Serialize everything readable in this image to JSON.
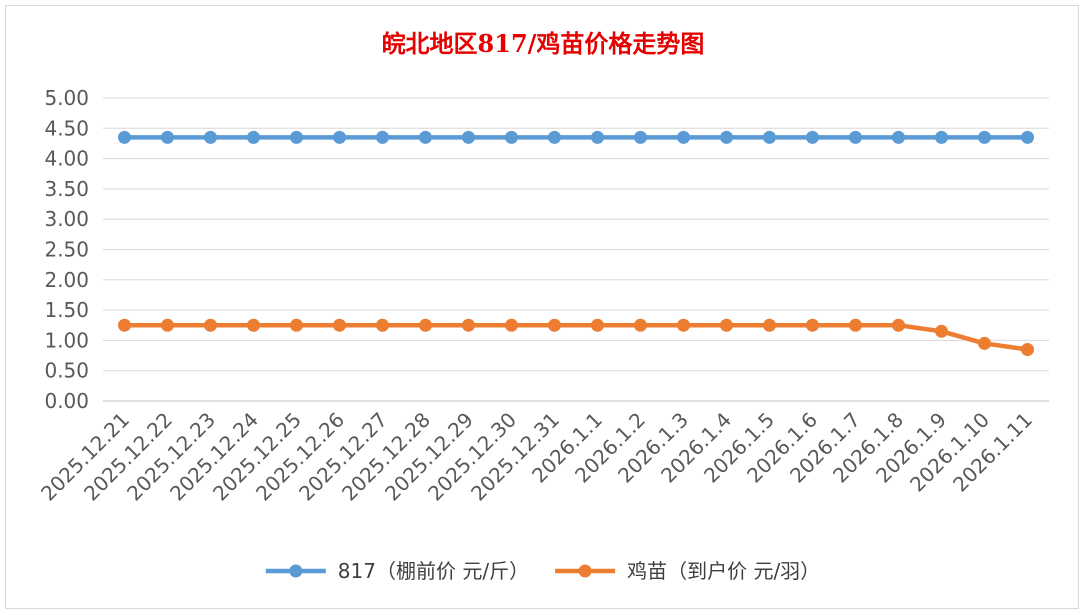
{
  "chart_data": {
    "type": "line",
    "title": "皖北地区817/鸡苗价格走势图",
    "title_color": "#e60000",
    "xlabel": "",
    "ylabel": "",
    "ylim": [
      0,
      5
    ],
    "y_tick_step": 0.5,
    "y_tick_decimals": 2,
    "grid": true,
    "legend_position": "bottom",
    "categories": [
      "2025.12.21",
      "2025.12.22",
      "2025.12.23",
      "2025.12.24",
      "2025.12.25",
      "2025.12.26",
      "2025.12.27",
      "2025.12.28",
      "2025.12.29",
      "2025.12.30",
      "2025.12.31",
      "2026.1.1",
      "2026.1.2",
      "2026.1.3",
      "2026.1.4",
      "2026.1.5",
      "2026.1.6",
      "2026.1.7",
      "2026.1.8",
      "2026.1.9",
      "2026.1.10",
      "2026.1.11"
    ],
    "series": [
      {
        "name": "817（棚前价 元/斤）",
        "color": "#5b9bd5",
        "values": [
          4.35,
          4.35,
          4.35,
          4.35,
          4.35,
          4.35,
          4.35,
          4.35,
          4.35,
          4.35,
          4.35,
          4.35,
          4.35,
          4.35,
          4.35,
          4.35,
          4.35,
          4.35,
          4.35,
          4.35,
          4.35,
          4.35
        ]
      },
      {
        "name": "鸡苗（到户价 元/羽）",
        "color": "#ed7d31",
        "values": [
          1.25,
          1.25,
          1.25,
          1.25,
          1.25,
          1.25,
          1.25,
          1.25,
          1.25,
          1.25,
          1.25,
          1.25,
          1.25,
          1.25,
          1.25,
          1.25,
          1.25,
          1.25,
          1.25,
          1.15,
          0.95,
          0.85
        ]
      }
    ]
  }
}
